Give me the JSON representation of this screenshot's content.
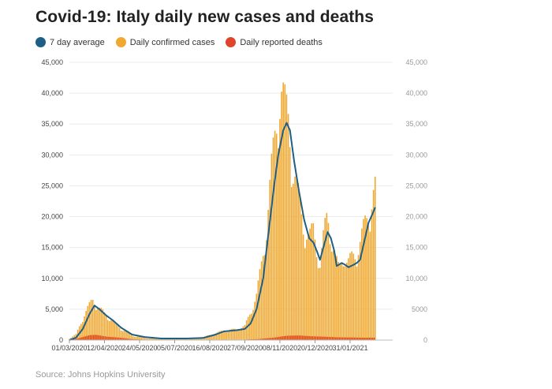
{
  "colors": {
    "average": "#1d5f86",
    "cases": "#f0a830",
    "deaths": "#e0442c"
  },
  "chart_data": {
    "type": "bar",
    "title": "Covid-19: Italy daily new cases and deaths",
    "legend": [
      "7 day average",
      "Daily confirmed cases",
      "Daily reported deaths"
    ],
    "source": "Source: Johns Hopkins University",
    "ylim": [
      0,
      45000
    ],
    "left_ticks": [
      "0",
      "5,000",
      "10,000",
      "15,000",
      "20,000",
      "25,000",
      "30,000",
      "35,000",
      "40,000",
      "45,000"
    ],
    "right_ticks": [
      "0",
      "5000",
      "10,000",
      "15,000",
      "20,000",
      "25,000",
      "30,000",
      "35,000",
      "40,000",
      "45,000"
    ],
    "x_ticks": [
      "01/03/2020",
      "12/04/2020",
      "24/05/2020",
      "05/07/2020",
      "16/08/2020",
      "27/09/2020",
      "08/11/2020",
      "20/12/2020",
      "31/01/2021"
    ],
    "x_tick_days": [
      0,
      42,
      84,
      126,
      168,
      210,
      252,
      294,
      336
    ],
    "x_range_days": [
      0,
      387
    ],
    "average_keypoints": [
      [
        0,
        0
      ],
      [
        8,
        400
      ],
      [
        16,
        1800
      ],
      [
        24,
        4200
      ],
      [
        30,
        5600
      ],
      [
        36,
        5000
      ],
      [
        44,
        4000
      ],
      [
        52,
        3200
      ],
      [
        62,
        2000
      ],
      [
        75,
        900
      ],
      [
        90,
        500
      ],
      [
        110,
        250
      ],
      [
        140,
        250
      ],
      [
        160,
        350
      ],
      [
        175,
        900
      ],
      [
        185,
        1400
      ],
      [
        200,
        1600
      ],
      [
        210,
        1800
      ],
      [
        217,
        2700
      ],
      [
        224,
        5000
      ],
      [
        232,
        10000
      ],
      [
        238,
        17000
      ],
      [
        245,
        25000
      ],
      [
        250,
        30000
      ],
      [
        256,
        34000
      ],
      [
        260,
        35200
      ],
      [
        264,
        34000
      ],
      [
        269,
        29000
      ],
      [
        275,
        24000
      ],
      [
        281,
        19500
      ],
      [
        287,
        16500
      ],
      [
        292,
        15800
      ],
      [
        296,
        14500
      ],
      [
        300,
        13000
      ],
      [
        305,
        15500
      ],
      [
        309,
        17500
      ],
      [
        313,
        16500
      ],
      [
        317,
        14500
      ],
      [
        320,
        12000
      ],
      [
        326,
        12500
      ],
      [
        330,
        12200
      ],
      [
        334,
        11800
      ],
      [
        340,
        12200
      ],
      [
        344,
        12500
      ],
      [
        348,
        13000
      ],
      [
        353,
        16000
      ],
      [
        358,
        19000
      ],
      [
        363,
        20500
      ],
      [
        366,
        21500
      ]
    ],
    "cases_keypoints": [
      [
        0,
        200
      ],
      [
        8,
        900
      ],
      [
        16,
        3500
      ],
      [
        24,
        5500
      ],
      [
        28,
        6500
      ],
      [
        34,
        5200
      ],
      [
        42,
        4200
      ],
      [
        52,
        3000
      ],
      [
        62,
        1800
      ],
      [
        75,
        700
      ],
      [
        90,
        350
      ],
      [
        110,
        200
      ],
      [
        140,
        250
      ],
      [
        160,
        450
      ],
      [
        175,
        1100
      ],
      [
        185,
        1500
      ],
      [
        200,
        1700
      ],
      [
        210,
        2200
      ],
      [
        217,
        4500
      ],
      [
        224,
        7000
      ],
      [
        230,
        12000
      ],
      [
        236,
        18000
      ],
      [
        242,
        27000
      ],
      [
        248,
        35000
      ],
      [
        253,
        40000
      ],
      [
        258,
        37000
      ],
      [
        263,
        35000
      ],
      [
        268,
        27000
      ],
      [
        275,
        22000
      ],
      [
        281,
        18000
      ],
      [
        287,
        16000
      ],
      [
        292,
        17500
      ],
      [
        296,
        15000
      ],
      [
        300,
        12000
      ],
      [
        305,
        17000
      ],
      [
        309,
        20000
      ],
      [
        313,
        17000
      ],
      [
        318,
        13000
      ],
      [
        323,
        11000
      ],
      [
        328,
        14000
      ],
      [
        333,
        12000
      ],
      [
        338,
        13000
      ],
      [
        343,
        14000
      ],
      [
        348,
        15500
      ],
      [
        353,
        18000
      ],
      [
        358,
        20000
      ],
      [
        363,
        23000
      ],
      [
        366,
        24000
      ]
    ],
    "deaths_keypoints": [
      [
        0,
        10
      ],
      [
        10,
        250
      ],
      [
        24,
        800
      ],
      [
        32,
        850
      ],
      [
        45,
        550
      ],
      [
        60,
        400
      ],
      [
        75,
        150
      ],
      [
        90,
        50
      ],
      [
        150,
        20
      ],
      [
        200,
        30
      ],
      [
        225,
        150
      ],
      [
        245,
        400
      ],
      [
        260,
        700
      ],
      [
        275,
        750
      ],
      [
        290,
        620
      ],
      [
        305,
        550
      ],
      [
        320,
        450
      ],
      [
        340,
        420
      ],
      [
        355,
        380
      ],
      [
        366,
        400
      ]
    ]
  }
}
